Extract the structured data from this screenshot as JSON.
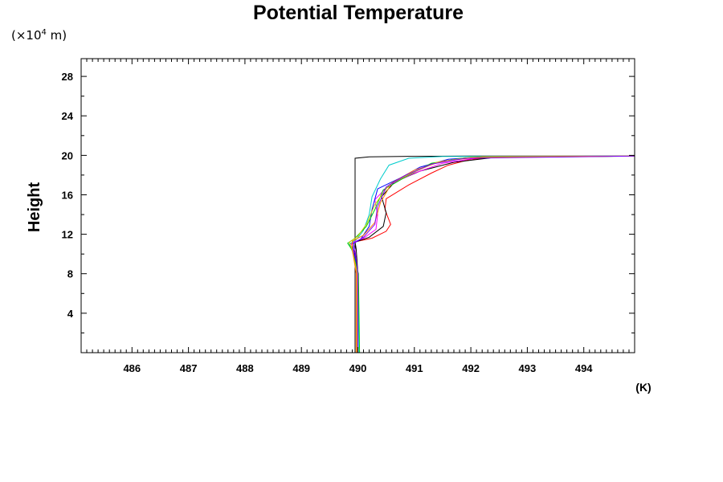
{
  "chart_data": {
    "type": "line",
    "title": "Potential Temperature",
    "ylabel": "Height",
    "y_unit_prefix": "(×10",
    "y_unit_exponent": "4",
    "y_unit_suffix": " m)",
    "x_unit": "(K)",
    "xlim": [
      485.1,
      494.9
    ],
    "ylim": [
      0,
      29.8
    ],
    "xticks": [
      486,
      487,
      488,
      489,
      490,
      491,
      492,
      493,
      494
    ],
    "xtick_labels": [
      "486",
      "487",
      "488",
      "489",
      "490",
      "491",
      "492",
      "493",
      "494"
    ],
    "yticks": [
      4,
      8,
      12,
      16,
      20,
      24,
      28
    ],
    "ytick_labels": [
      "4",
      "8",
      "12",
      "16",
      "20",
      "24",
      "28"
    ],
    "grid": false,
    "legend": "none",
    "series": [
      {
        "color": "#000000",
        "points": [
          [
            489.95,
            0
          ],
          [
            489.95,
            19.7
          ],
          [
            490.2,
            19.85
          ],
          [
            491,
            19.9
          ],
          [
            492,
            19.92
          ],
          [
            494.9,
            19.92
          ]
        ]
      },
      {
        "color": "#ff0000",
        "points": [
          [
            489.98,
            0
          ],
          [
            489.99,
            8
          ],
          [
            489.95,
            10.2
          ],
          [
            489.85,
            11
          ],
          [
            490,
            11.3
          ],
          [
            490.25,
            11.6
          ],
          [
            490.5,
            12.3
          ],
          [
            490.58,
            13
          ],
          [
            490.48,
            14.5
          ],
          [
            490.5,
            15.6
          ],
          [
            490.9,
            17
          ],
          [
            491.3,
            18.2
          ],
          [
            491.6,
            19
          ],
          [
            492,
            19.6
          ],
          [
            492.6,
            19.85
          ],
          [
            494.9,
            19.92
          ]
        ]
      },
      {
        "color": "#000000",
        "points": [
          [
            490.0,
            0
          ],
          [
            490.0,
            8
          ],
          [
            489.97,
            10.5
          ],
          [
            489.95,
            11.2
          ],
          [
            490.2,
            11.7
          ],
          [
            490.45,
            12.8
          ],
          [
            490.5,
            14.2
          ],
          [
            490.42,
            15.8
          ],
          [
            490.65,
            17.3
          ],
          [
            491.1,
            18.4
          ],
          [
            491.7,
            19.3
          ],
          [
            492.5,
            19.85
          ],
          [
            494.9,
            19.92
          ]
        ]
      },
      {
        "color": "#ff00ff",
        "points": [
          [
            489.98,
            0
          ],
          [
            489.98,
            8
          ],
          [
            489.92,
            10.4
          ],
          [
            489.88,
            11.1
          ],
          [
            490.1,
            11.6
          ],
          [
            490.32,
            12.5
          ],
          [
            490.35,
            14
          ],
          [
            490.3,
            15.5
          ],
          [
            490.55,
            17
          ],
          [
            491,
            18.2
          ],
          [
            491.5,
            19.2
          ],
          [
            492.2,
            19.8
          ],
          [
            494.9,
            19.92
          ]
        ]
      },
      {
        "color": "#0000ff",
        "points": [
          [
            490.0,
            0
          ],
          [
            490.0,
            8
          ],
          [
            489.93,
            10.3
          ],
          [
            489.9,
            11.0
          ],
          [
            490.05,
            11.5
          ],
          [
            490.2,
            12.8
          ],
          [
            490.25,
            14.5
          ],
          [
            490.35,
            16.6
          ],
          [
            490.75,
            17.7
          ],
          [
            491.1,
            18.8
          ],
          [
            491.6,
            19.6
          ],
          [
            492.3,
            19.88
          ],
          [
            494.9,
            19.92
          ]
        ]
      },
      {
        "color": "#00cccc",
        "points": [
          [
            490.02,
            0
          ],
          [
            490.0,
            8
          ],
          [
            489.9,
            10.3
          ],
          [
            489.85,
            11
          ],
          [
            489.98,
            11.5
          ],
          [
            490.1,
            12.4
          ],
          [
            490.2,
            14
          ],
          [
            490.25,
            15.8
          ],
          [
            490.4,
            17.6
          ],
          [
            490.55,
            19
          ],
          [
            490.9,
            19.7
          ],
          [
            491.5,
            19.88
          ],
          [
            494.9,
            19.92
          ]
        ]
      },
      {
        "color": "#00cc00",
        "points": [
          [
            490.03,
            0
          ],
          [
            490.01,
            8
          ],
          [
            489.9,
            10.4
          ],
          [
            489.82,
            11.1
          ],
          [
            489.95,
            11.6
          ],
          [
            490.15,
            12.8
          ],
          [
            490.3,
            14.5
          ],
          [
            490.45,
            16.5
          ],
          [
            490.9,
            18
          ],
          [
            491.3,
            19.2
          ],
          [
            491.9,
            19.75
          ],
          [
            494.9,
            19.92
          ]
        ]
      },
      {
        "color": "#cccc00",
        "points": [
          [
            489.99,
            0
          ],
          [
            489.99,
            8
          ],
          [
            489.9,
            10.4
          ],
          [
            489.85,
            11.2
          ],
          [
            490.0,
            11.8
          ],
          [
            490.15,
            13
          ],
          [
            490.3,
            15
          ],
          [
            490.55,
            17
          ],
          [
            490.95,
            18.2
          ],
          [
            491.4,
            19.3
          ],
          [
            492,
            19.8
          ],
          [
            494.9,
            19.92
          ]
        ]
      },
      {
        "color": "#ff8000",
        "points": [
          [
            489.97,
            0
          ],
          [
            489.97,
            8
          ],
          [
            489.9,
            10.5
          ],
          [
            489.9,
            11.3
          ],
          [
            490.1,
            11.9
          ],
          [
            490.3,
            13.2
          ],
          [
            490.4,
            15.2
          ],
          [
            490.6,
            17.2
          ],
          [
            491,
            18.5
          ],
          [
            491.5,
            19.4
          ],
          [
            492.2,
            19.85
          ],
          [
            494.9,
            19.92
          ]
        ]
      },
      {
        "color": "#8000ff",
        "points": [
          [
            490.0,
            0
          ],
          [
            490.0,
            8
          ],
          [
            489.95,
            10.4
          ],
          [
            489.92,
            11.1
          ],
          [
            490.1,
            11.7
          ],
          [
            490.3,
            13
          ],
          [
            490.35,
            14.8
          ],
          [
            490.5,
            16.8
          ],
          [
            490.85,
            18
          ],
          [
            491.3,
            19.1
          ],
          [
            491.9,
            19.7
          ],
          [
            494.9,
            19.92
          ]
        ]
      }
    ]
  }
}
